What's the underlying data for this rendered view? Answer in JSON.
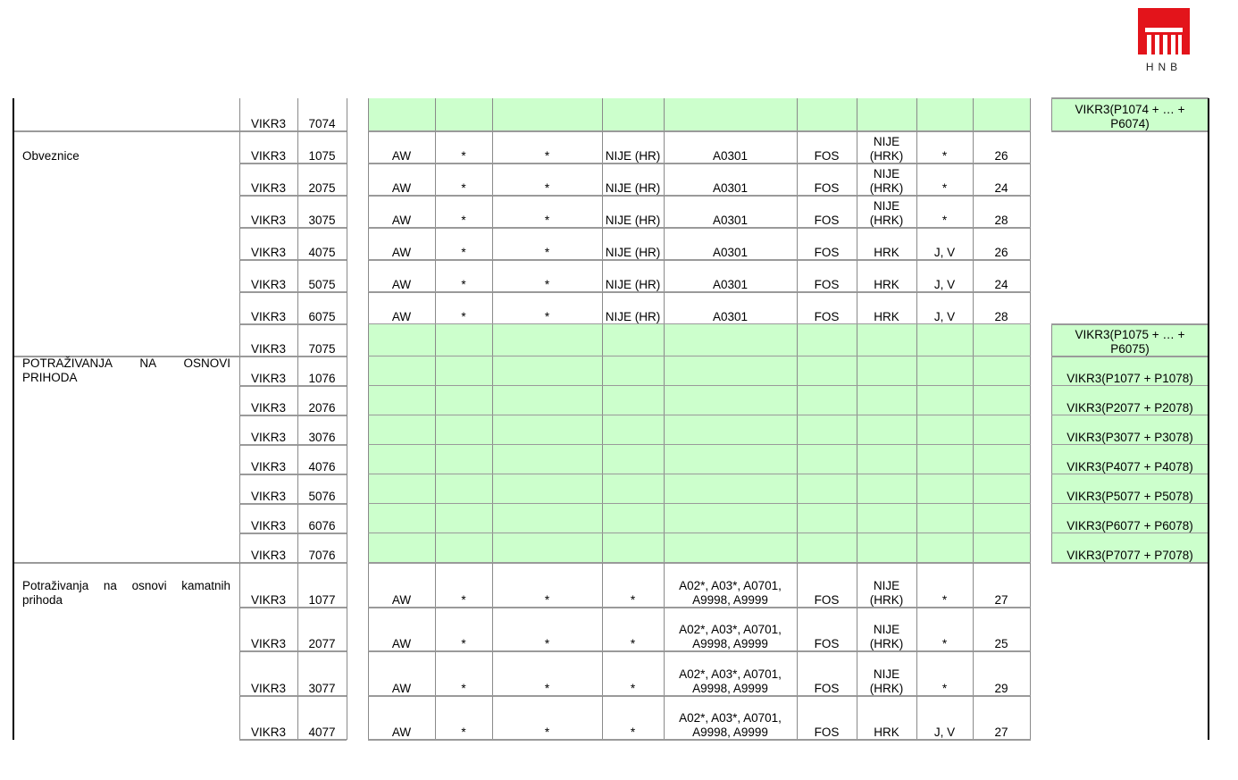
{
  "logo": {
    "text": "HNB",
    "color": "#e3141b"
  },
  "colors": {
    "green": "#ccffcc",
    "grid": "#8a8a8a"
  },
  "groups": [
    {
      "description": "",
      "rows": [
        {
          "code": "VIKR3",
          "num": "7074",
          "green": true,
          "formula": "VIKR3(P1074 + … + P6074)"
        }
      ]
    },
    {
      "description": "Obveznice",
      "rows": [
        {
          "code": "VIKR3",
          "num": "1075",
          "cells": [
            "AW",
            "*",
            "*",
            "NIJE (HR)",
            "A0301",
            "FOS",
            "NIJE (HRK)",
            "*",
            "26"
          ]
        },
        {
          "code": "VIKR3",
          "num": "2075",
          "cells": [
            "AW",
            "*",
            "*",
            "NIJE (HR)",
            "A0301",
            "FOS",
            "NIJE (HRK)",
            "*",
            "24"
          ]
        },
        {
          "code": "VIKR3",
          "num": "3075",
          "cells": [
            "AW",
            "*",
            "*",
            "NIJE (HR)",
            "A0301",
            "FOS",
            "NIJE (HRK)",
            "*",
            "28"
          ]
        },
        {
          "code": "VIKR3",
          "num": "4075",
          "cells": [
            "AW",
            "*",
            "*",
            "NIJE (HR)",
            "A0301",
            "FOS",
            "HRK",
            "J, V",
            "26"
          ]
        },
        {
          "code": "VIKR3",
          "num": "5075",
          "cells": [
            "AW",
            "*",
            "*",
            "NIJE (HR)",
            "A0301",
            "FOS",
            "HRK",
            "J, V",
            "24"
          ]
        },
        {
          "code": "VIKR3",
          "num": "6075",
          "cells": [
            "AW",
            "*",
            "*",
            "NIJE (HR)",
            "A0301",
            "FOS",
            "HRK",
            "J, V",
            "28"
          ]
        },
        {
          "code": "VIKR3",
          "num": "7075",
          "green": true,
          "formula": "VIKR3(P1075 + … + P6075)"
        }
      ]
    },
    {
      "description": "POTRAŽIVANJA NA OSNOVI PRIHODA",
      "rows": [
        {
          "code": "VIKR3",
          "num": "1076",
          "green": true,
          "formula": "VIKR3(P1077 + P1078)"
        },
        {
          "code": "VIKR3",
          "num": "2076",
          "green": true,
          "formula": "VIKR3(P2077 + P2078)"
        },
        {
          "code": "VIKR3",
          "num": "3076",
          "green": true,
          "formula": "VIKR3(P3077 + P3078)"
        },
        {
          "code": "VIKR3",
          "num": "4076",
          "green": true,
          "formula": "VIKR3(P4077 + P4078)"
        },
        {
          "code": "VIKR3",
          "num": "5076",
          "green": true,
          "formula": "VIKR3(P5077 + P5078)"
        },
        {
          "code": "VIKR3",
          "num": "6076",
          "green": true,
          "formula": "VIKR3(P6077 + P6078)"
        },
        {
          "code": "VIKR3",
          "num": "7076",
          "green": true,
          "formula": "VIKR3(P7077 + P7078)"
        }
      ]
    },
    {
      "description": "Potraživanja na osnovi kamatnih prihoda",
      "rows": [
        {
          "code": "VIKR3",
          "num": "1077",
          "cells": [
            "AW",
            "*",
            "*",
            "*",
            "A02*, A03*, A0701, A9998, A9999",
            "FOS",
            "NIJE (HRK)",
            "*",
            "27"
          ]
        },
        {
          "code": "VIKR3",
          "num": "2077",
          "cells": [
            "AW",
            "*",
            "*",
            "*",
            "A02*, A03*, A0701, A9998, A9999",
            "FOS",
            "NIJE (HRK)",
            "*",
            "25"
          ]
        },
        {
          "code": "VIKR3",
          "num": "3077",
          "cells": [
            "AW",
            "*",
            "*",
            "*",
            "A02*, A03*, A0701, A9998, A9999",
            "FOS",
            "NIJE (HRK)",
            "*",
            "29"
          ]
        },
        {
          "code": "VIKR3",
          "num": "4077",
          "cells": [
            "AW",
            "*",
            "*",
            "*",
            "A02*, A03*, A0701, A9998, A9999",
            "FOS",
            "HRK",
            "J, V",
            "27"
          ]
        }
      ]
    }
  ]
}
